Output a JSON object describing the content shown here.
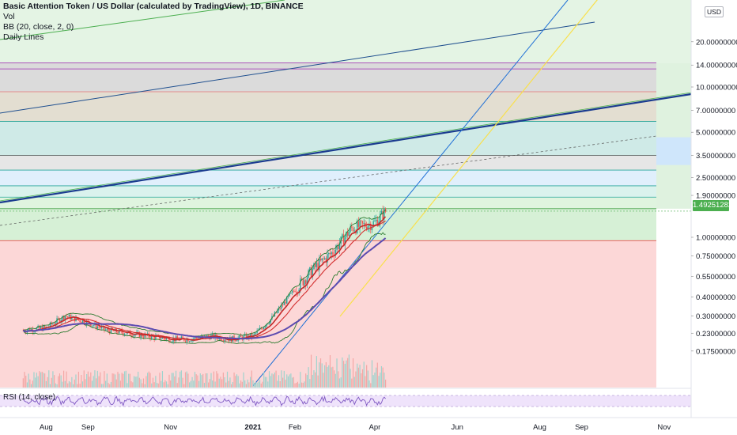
{
  "legend": {
    "title": "Basic Attention Token / US Dollar (calculated by TradingView), 1D, BINANCE",
    "vol": "Vol",
    "bb": "BB (20, close, 2, 0)",
    "daily": "Daily Lines"
  },
  "rsi_label": "RSI (14, close)",
  "currency": "USD",
  "last_price": "1.49251282",
  "colors": {
    "up": "#26a69a",
    "down": "#ef5350",
    "bb_line": "#2e7d32",
    "ma_red": "#c62828",
    "ma_purple": "#5c4bb0",
    "yellow_trend": "#f9e04b",
    "blue_trend": "#1e88e5",
    "green_fill": "#c8ebc8",
    "red_fill": "#fbcac9",
    "rsi_fill": "#efe3fb",
    "price_badge": "#4caf50"
  },
  "chart_data": {
    "type": "candlestick",
    "symbol": "BATUSD",
    "interval": "1D",
    "exchange": "BINANCE",
    "price_scale": "log",
    "price_ticks": [
      "20.00000000",
      "14.00000000",
      "10.00000000",
      "7.00000000",
      "5.00000000",
      "3.50000000",
      "2.50000000",
      "1.90000000",
      "1.00000000",
      "0.75000000",
      "0.55000000",
      "0.40000000",
      "0.30000000",
      "0.23000000",
      "0.17500000"
    ],
    "price_tick_values": [
      20,
      14,
      10,
      7,
      5,
      3.5,
      2.5,
      1.9,
      1.0,
      0.75,
      0.55,
      0.4,
      0.3,
      0.23,
      0.175
    ],
    "x_ticks": [
      "Aug",
      "Sep",
      "Nov",
      "2021",
      "Feb",
      "Apr",
      "Jun",
      "Aug",
      "Sep",
      "Nov"
    ],
    "last_price": 1.49251282,
    "price_series": {
      "dates": [
        "2020-07-15",
        "2020-08-01",
        "2020-08-15",
        "2020-09-01",
        "2020-09-15",
        "2020-10-01",
        "2020-10-15",
        "2020-11-01",
        "2020-11-15",
        "2020-12-01",
        "2020-12-15",
        "2021-01-01",
        "2021-01-15",
        "2021-02-01",
        "2021-02-15",
        "2021-03-01",
        "2021-03-15",
        "2021-04-01",
        "2021-04-09"
      ],
      "close": [
        0.24,
        0.25,
        0.3,
        0.27,
        0.24,
        0.23,
        0.22,
        0.21,
        0.21,
        0.22,
        0.21,
        0.22,
        0.29,
        0.45,
        0.62,
        0.8,
        1.15,
        1.25,
        1.49
      ]
    },
    "horizontal_levels": [
      14.5,
      13.2,
      9.3,
      5.9,
      3.5,
      2.8,
      2.2,
      1.85,
      1.55,
      0.95
    ],
    "rsi_period": 14,
    "bb_settings": "20, close, 2, 0"
  }
}
